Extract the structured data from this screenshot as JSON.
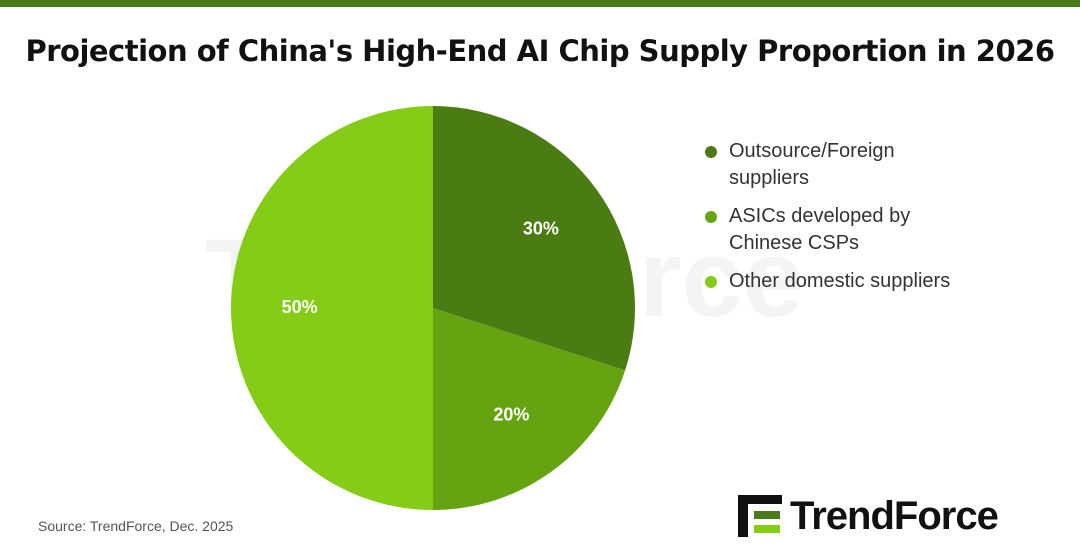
{
  "chart_data": {
    "type": "pie",
    "title": "Projection of China's High-End AI Chip Supply Proportion in 2026",
    "categories": [
      "Outsource/Foreign suppliers",
      "ASICs developed by Chinese CSPs",
      "Other domestic suppliers"
    ],
    "values": [
      30,
      20,
      50
    ],
    "value_labels": [
      "30%",
      "20%",
      "50%"
    ],
    "colors": [
      "#4b7b13",
      "#66a311",
      "#84cc16"
    ],
    "legend": "right"
  },
  "source": "Source: TrendForce, Dec. 2025",
  "logo": "TrendForce"
}
